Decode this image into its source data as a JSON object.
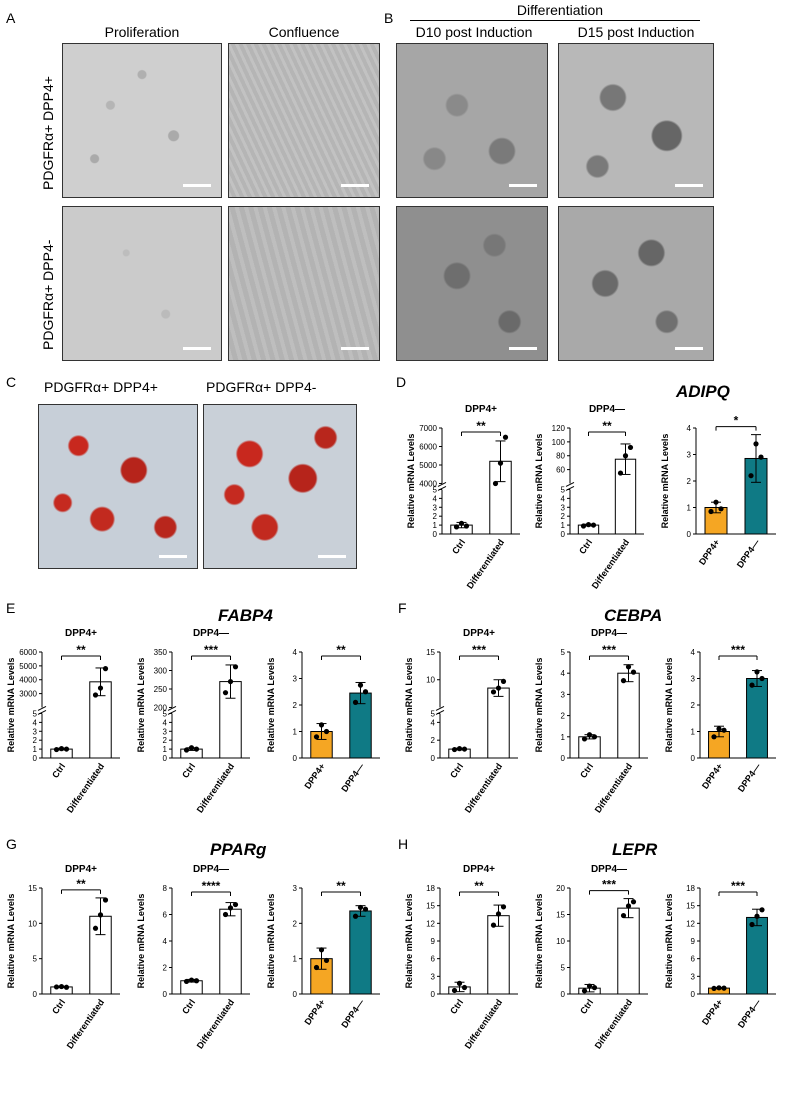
{
  "panels": {
    "A": {
      "letter": "A",
      "col1": "Proliferation",
      "col2": "Confluence"
    },
    "B": {
      "letter": "B",
      "header": "Differentiation",
      "col1": "D10 post Induction",
      "col2": "D15 post Induction"
    },
    "rows": {
      "top": "PDGFRα+ DPP4+",
      "bottom": "PDGFRα+ DPP4-"
    },
    "C": {
      "letter": "C",
      "left": "PDGFRα+ DPP4+",
      "right": "PDGFRα+ DPP4-"
    },
    "D": {
      "letter": "D",
      "gene": "ADIPQ"
    },
    "E": {
      "letter": "E",
      "gene": "FABP4"
    },
    "F": {
      "letter": "F",
      "gene": "CEBPA"
    },
    "G": {
      "letter": "G",
      "gene": "PPARg"
    },
    "H": {
      "letter": "H",
      "gene": "LEPR"
    }
  },
  "colors": {
    "dpp4pos": "#F5A623",
    "dpp4neg": "#0F7A85",
    "ctrl": "#FFFFFF",
    "stain": "#C8281E"
  },
  "chart_data": [
    {
      "id": "D1",
      "type": "bar",
      "title": "DPP4+",
      "ylabel": "Relative mRNA Levels",
      "categories": [
        "Ctrl",
        "Differentiated"
      ],
      "values": [
        1,
        5200
      ],
      "errors": [
        0.3,
        1100
      ],
      "points": [
        [
          0.8,
          1.2,
          0.9
        ],
        [
          4000,
          5100,
          6500
        ]
      ],
      "sig": "**",
      "ybreak": {
        "low": [
          0,
          5
        ],
        "high": [
          4000,
          7000
        ],
        "lowTicks": [
          0,
          1,
          2,
          3,
          4,
          5
        ],
        "highTicks": [
          4000,
          5000,
          6000,
          7000
        ]
      }
    },
    {
      "id": "D2",
      "type": "bar",
      "title": "DPP4—",
      "ylabel": "Relative mRNA Levels",
      "categories": [
        "Ctrl",
        "Differentiated"
      ],
      "values": [
        1,
        75
      ],
      "errors": [
        0.1,
        22
      ],
      "points": [
        [
          0.9,
          1.05,
          1.0
        ],
        [
          55,
          80,
          92
        ]
      ],
      "sig": "**",
      "ybreak": {
        "low": [
          0,
          5
        ],
        "high": [
          40,
          120
        ],
        "lowTicks": [
          0,
          1,
          2,
          3,
          4,
          5
        ],
        "highTicks": [
          60,
          80,
          100,
          120
        ]
      }
    },
    {
      "id": "D3",
      "type": "bar",
      "ylabel": "Relative mRNA Levels",
      "categories": [
        "DPP4+",
        "DPP4—"
      ],
      "values": [
        1,
        2.85
      ],
      "errors": [
        0.2,
        0.9
      ],
      "points": [
        [
          0.85,
          1.2,
          0.95
        ],
        [
          2.2,
          3.4,
          2.9
        ]
      ],
      "sig": "*",
      "ylim": [
        0,
        4
      ],
      "yticks": [
        0,
        1,
        2,
        3,
        4
      ],
      "colored": true
    },
    {
      "id": "E1",
      "type": "bar",
      "title": "DPP4+",
      "ylabel": "Relative mRNA Levels",
      "categories": [
        "Ctrl",
        "Differentiated"
      ],
      "values": [
        1,
        3850
      ],
      "errors": [
        0.1,
        1000
      ],
      "points": [
        [
          0.95,
          1.05,
          1.0
        ],
        [
          2900,
          3400,
          4800
        ]
      ],
      "sig": "**",
      "ybreak": {
        "low": [
          0,
          5
        ],
        "high": [
          2000,
          6000
        ],
        "lowTicks": [
          0,
          1,
          2,
          3,
          4,
          5
        ],
        "highTicks": [
          3000,
          4000,
          5000,
          6000
        ]
      }
    },
    {
      "id": "E2",
      "type": "bar",
      "title": "DPP4—",
      "ylabel": "Relative mRNA Levels",
      "categories": [
        "Ctrl",
        "Differentiated"
      ],
      "values": [
        1,
        270
      ],
      "errors": [
        0.15,
        45
      ],
      "points": [
        [
          0.9,
          1.15,
          1.0
        ],
        [
          240,
          270,
          310
        ]
      ],
      "sig": "***",
      "ybreak": {
        "low": [
          0,
          5
        ],
        "high": [
          200,
          350
        ],
        "lowTicks": [
          0,
          1,
          2,
          3,
          4,
          5
        ],
        "highTicks": [
          200,
          250,
          300,
          350
        ]
      }
    },
    {
      "id": "E3",
      "type": "bar",
      "ylabel": "Relative mRNA Levels",
      "categories": [
        "DPP4+",
        "DPP4—"
      ],
      "values": [
        1,
        2.45
      ],
      "errors": [
        0.3,
        0.4
      ],
      "points": [
        [
          0.8,
          1.25,
          1.0
        ],
        [
          2.1,
          2.75,
          2.5
        ]
      ],
      "sig": "**",
      "ylim": [
        0,
        4
      ],
      "yticks": [
        0,
        1,
        2,
        3,
        4
      ],
      "colored": true
    },
    {
      "id": "F1",
      "type": "bar",
      "title": "DPP4+",
      "ylabel": "Relative mRNA Levels",
      "categories": [
        "Ctrl",
        "Differentiated"
      ],
      "values": [
        1,
        8.5
      ],
      "errors": [
        0.1,
        1.5
      ],
      "points": [
        [
          0.95,
          1.05,
          1.0
        ],
        [
          7.8,
          8.5,
          9.7
        ]
      ],
      "sig": "***",
      "ybreak": {
        "low": [
          0,
          5
        ],
        "high": [
          5,
          15
        ],
        "lowTicks": [
          0,
          2,
          4
        ],
        "highTicks": [
          5,
          10,
          15
        ]
      }
    },
    {
      "id": "F2",
      "type": "bar",
      "title": "DPP4—",
      "ylabel": "Relative mRNA Levels",
      "categories": [
        "Ctrl",
        "Differentiated"
      ],
      "values": [
        1,
        4.0
      ],
      "errors": [
        0.1,
        0.4
      ],
      "points": [
        [
          0.9,
          1.1,
          1.0
        ],
        [
          3.65,
          4.3,
          4.05
        ]
      ],
      "sig": "***",
      "ylim": [
        0,
        5
      ],
      "yticks": [
        0,
        1,
        2,
        3,
        4,
        5
      ]
    },
    {
      "id": "F3",
      "type": "bar",
      "ylabel": "Relative mRNA Levels",
      "categories": [
        "DPP4+",
        "DPP4—"
      ],
      "values": [
        1,
        3.0
      ],
      "errors": [
        0.2,
        0.3
      ],
      "points": [
        [
          0.8,
          1.1,
          1.05
        ],
        [
          2.75,
          3.25,
          3.0
        ]
      ],
      "sig": "***",
      "ylim": [
        0,
        4
      ],
      "yticks": [
        0,
        1,
        2,
        3,
        4
      ],
      "colored": true
    },
    {
      "id": "G1",
      "type": "bar",
      "title": "DPP4+",
      "ylabel": "Relative mRNA Levels",
      "categories": [
        "Ctrl",
        "Differentiated"
      ],
      "values": [
        1,
        11
      ],
      "errors": [
        0.1,
        2.6
      ],
      "points": [
        [
          1.0,
          1.05,
          0.95
        ],
        [
          9.3,
          11.2,
          13.3
        ]
      ],
      "sig": "**",
      "ylim": [
        0,
        15
      ],
      "yticks": [
        0,
        5,
        10,
        15
      ]
    },
    {
      "id": "G2",
      "type": "bar",
      "title": "DPP4—",
      "ylabel": "Relative mRNA Levels",
      "categories": [
        "Ctrl",
        "Differentiated"
      ],
      "values": [
        1,
        6.4
      ],
      "errors": [
        0.1,
        0.5
      ],
      "points": [
        [
          0.95,
          1.05,
          1.0
        ],
        [
          6.0,
          6.5,
          6.75
        ]
      ],
      "sig": "****",
      "ylim": [
        0,
        8
      ],
      "yticks": [
        0,
        2,
        4,
        6,
        8
      ]
    },
    {
      "id": "G3",
      "type": "bar",
      "ylabel": "Relative mRNA Levels",
      "categories": [
        "DPP4+",
        "DPP4—"
      ],
      "values": [
        1,
        2.35
      ],
      "errors": [
        0.3,
        0.15
      ],
      "points": [
        [
          0.75,
          1.25,
          0.95
        ],
        [
          2.2,
          2.45,
          2.4
        ]
      ],
      "sig": "**",
      "ylim": [
        0,
        3
      ],
      "yticks": [
        0,
        1,
        2,
        3
      ],
      "colored": true
    },
    {
      "id": "H1",
      "type": "bar",
      "title": "DPP4+",
      "ylabel": "Relative mRNA Levels",
      "categories": [
        "Ctrl",
        "Differentiated"
      ],
      "values": [
        1.2,
        13.3
      ],
      "errors": [
        0.8,
        1.8
      ],
      "points": [
        [
          0.6,
          1.8,
          1.1
        ],
        [
          11.7,
          13.6,
          14.8
        ]
      ],
      "sig": "**",
      "ylim": [
        0,
        18
      ],
      "yticks": [
        0,
        3,
        6,
        9,
        12,
        15,
        18
      ]
    },
    {
      "id": "H2",
      "type": "bar",
      "title": "DPP4—",
      "ylabel": "Relative mRNA Levels",
      "categories": [
        "Ctrl",
        "Differentiated"
      ],
      "values": [
        1.1,
        16.2
      ],
      "errors": [
        0.7,
        1.8
      ],
      "points": [
        [
          0.6,
          1.5,
          1.2
        ],
        [
          14.8,
          16.6,
          17.4
        ]
      ],
      "sig": "***",
      "ylim": [
        0,
        20
      ],
      "yticks": [
        0,
        5,
        10,
        15,
        20
      ]
    },
    {
      "id": "H3",
      "type": "bar",
      "ylabel": "Relative mRNA Levels",
      "categories": [
        "DPP4+",
        "DPP4—"
      ],
      "values": [
        1,
        13
      ],
      "errors": [
        0.1,
        1.4
      ],
      "points": [
        [
          0.95,
          1.05,
          1.0
        ],
        [
          11.8,
          13.2,
          14.3
        ]
      ],
      "sig": "***",
      "ylim": [
        0,
        18
      ],
      "yticks": [
        0,
        3,
        6,
        9,
        12,
        15,
        18
      ],
      "colored": true
    }
  ]
}
